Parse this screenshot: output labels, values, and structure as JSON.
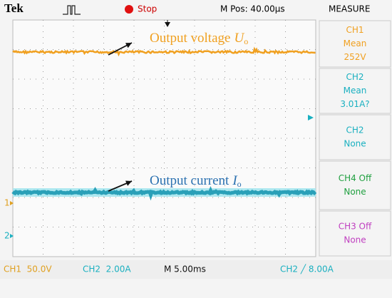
{
  "header": {
    "brand": "Tek",
    "status": "Stop",
    "position": "M Pos: 40.00μs",
    "menu": "MEASURE"
  },
  "measurements": [
    {
      "lines": [
        "CH1",
        "Mean",
        "252V"
      ]
    },
    {
      "lines": [
        "CH2",
        "Mean",
        "3.01A?"
      ]
    },
    {
      "lines": [
        "CH2",
        "None"
      ]
    },
    {
      "lines": [
        "CH4 Off",
        "None"
      ]
    },
    {
      "lines": [
        "CH3 Off",
        "None"
      ]
    }
  ],
  "annotations": [
    {
      "label": "Output voltage",
      "symbol": "U",
      "subscript": "o"
    },
    {
      "label": "Output current",
      "symbol": "I",
      "subscript": "o"
    }
  ],
  "channel_markers": [
    "1",
    "2"
  ],
  "footer": [
    "CH1  50.0V",
    "CH2  2.00A",
    "M 5.00ms",
    "CH2 ╱ 8.00A"
  ]
}
